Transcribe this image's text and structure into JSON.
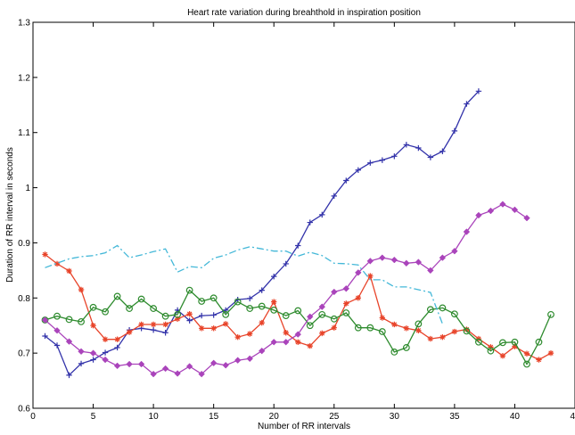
{
  "chart_data": {
    "type": "line",
    "title": "Heart rate variation during breahthold in inspiration position",
    "xlabel": "Number of RR intervals",
    "ylabel": "Duration of RR interval in seconds",
    "xlim": [
      0,
      45
    ],
    "ylim": [
      0.6,
      1.3
    ],
    "xticks": [
      0,
      5,
      10,
      15,
      20,
      25,
      30,
      35,
      40,
      45
    ],
    "yticks": [
      0.6,
      0.7,
      0.8,
      0.9,
      1.0,
      1.1,
      1.2,
      1.3
    ],
    "xtick_labels": [
      "0",
      "5",
      "10",
      "15",
      "20",
      "25",
      "30",
      "35",
      "40",
      "45"
    ],
    "ytick_labels": [
      "0.6",
      "0.7",
      "0.8",
      "0.9",
      "1",
      "1.1",
      "1.2",
      "1.3"
    ],
    "grid": false,
    "series": [
      {
        "color": "#3333aa",
        "marker": "plus",
        "dash": "solid",
        "x": [
          1,
          2,
          3,
          4,
          5,
          6,
          7,
          8,
          9,
          10,
          11,
          12,
          13,
          14,
          15,
          16,
          17,
          18,
          19,
          20,
          21,
          22,
          23,
          24,
          25,
          26,
          27,
          28,
          29,
          30,
          31,
          32,
          33,
          34,
          35,
          36,
          37
        ],
        "y": [
          0.731,
          0.714,
          0.66,
          0.681,
          0.688,
          0.701,
          0.71,
          0.742,
          0.745,
          0.742,
          0.737,
          0.778,
          0.759,
          0.768,
          0.769,
          0.778,
          0.797,
          0.799,
          0.814,
          0.839,
          0.862,
          0.895,
          0.937,
          0.951,
          0.985,
          1.013,
          1.032,
          1.045,
          1.05,
          1.057,
          1.078,
          1.072,
          1.055,
          1.066,
          1.103,
          1.152,
          1.175
        ]
      },
      {
        "color": "#e8442a",
        "marker": "star",
        "dash": "solid",
        "x": [
          1,
          2,
          3,
          4,
          5,
          6,
          7,
          8,
          9,
          10,
          11,
          12,
          13,
          14,
          15,
          16,
          17,
          18,
          19,
          20,
          21,
          22,
          23,
          24,
          25,
          26,
          27,
          28,
          29,
          30,
          31,
          32,
          33,
          34,
          35,
          36,
          37,
          38,
          39,
          40,
          41,
          42,
          43
        ],
        "y": [
          0.879,
          0.862,
          0.849,
          0.815,
          0.75,
          0.725,
          0.725,
          0.738,
          0.752,
          0.752,
          0.752,
          0.762,
          0.771,
          0.745,
          0.745,
          0.753,
          0.729,
          0.735,
          0.755,
          0.793,
          0.737,
          0.72,
          0.713,
          0.736,
          0.746,
          0.79,
          0.8,
          0.84,
          0.764,
          0.752,
          0.745,
          0.741,
          0.726,
          0.729,
          0.739,
          0.743,
          0.726,
          0.711,
          0.695,
          0.712,
          0.699,
          0.688,
          0.7
        ]
      },
      {
        "color": "#2e8b2e",
        "marker": "circle",
        "dash": "solid",
        "x": [
          1,
          2,
          3,
          4,
          5,
          6,
          7,
          8,
          9,
          10,
          11,
          12,
          13,
          14,
          15,
          16,
          17,
          18,
          19,
          20,
          21,
          22,
          23,
          24,
          25,
          26,
          27,
          28,
          29,
          30,
          31,
          32,
          33,
          34,
          35,
          36,
          37,
          38,
          39,
          40,
          41,
          42,
          43
        ],
        "y": [
          0.76,
          0.767,
          0.761,
          0.757,
          0.783,
          0.775,
          0.803,
          0.781,
          0.798,
          0.781,
          0.767,
          0.77,
          0.814,
          0.794,
          0.8,
          0.77,
          0.793,
          0.781,
          0.785,
          0.778,
          0.768,
          0.777,
          0.75,
          0.77,
          0.762,
          0.773,
          0.746,
          0.746,
          0.739,
          0.702,
          0.71,
          0.753,
          0.779,
          0.782,
          0.771,
          0.74,
          0.72,
          0.704,
          0.719,
          0.72,
          0.68,
          0.72,
          0.77
        ]
      },
      {
        "color": "#aa44bb",
        "marker": "diamond",
        "dash": "solid",
        "x": [
          1,
          2,
          3,
          4,
          5,
          6,
          7,
          8,
          9,
          10,
          11,
          12,
          13,
          14,
          15,
          16,
          17,
          18,
          19,
          20,
          21,
          22,
          23,
          24,
          25,
          26,
          27,
          28,
          29,
          30,
          31,
          32,
          33,
          34,
          35,
          36,
          37,
          38,
          39,
          40,
          41
        ],
        "y": [
          0.76,
          0.741,
          0.721,
          0.703,
          0.7,
          0.688,
          0.677,
          0.68,
          0.68,
          0.662,
          0.672,
          0.663,
          0.676,
          0.662,
          0.682,
          0.678,
          0.687,
          0.69,
          0.704,
          0.72,
          0.72,
          0.734,
          0.766,
          0.784,
          0.811,
          0.817,
          0.846,
          0.867,
          0.873,
          0.869,
          0.863,
          0.865,
          0.85,
          0.873,
          0.885,
          0.92,
          0.95,
          0.958,
          0.97,
          0.96,
          0.945
        ]
      },
      {
        "color": "#44b8d8",
        "marker": "none",
        "dash": "dashdot",
        "x": [
          1,
          2,
          3,
          4,
          5,
          6,
          7,
          8,
          9,
          10,
          11,
          12,
          13,
          14,
          15,
          16,
          17,
          18,
          19,
          20,
          21,
          22,
          23,
          24,
          25,
          26,
          27,
          28,
          29,
          30,
          31,
          32,
          33,
          34
        ],
        "y": [
          0.855,
          0.863,
          0.871,
          0.875,
          0.877,
          0.882,
          0.895,
          0.873,
          0.878,
          0.884,
          0.889,
          0.847,
          0.857,
          0.855,
          0.872,
          0.878,
          0.887,
          0.893,
          0.889,
          0.885,
          0.885,
          0.876,
          0.883,
          0.877,
          0.863,
          0.862,
          0.86,
          0.833,
          0.833,
          0.82,
          0.82,
          0.815,
          0.81,
          0.753
        ]
      }
    ]
  }
}
